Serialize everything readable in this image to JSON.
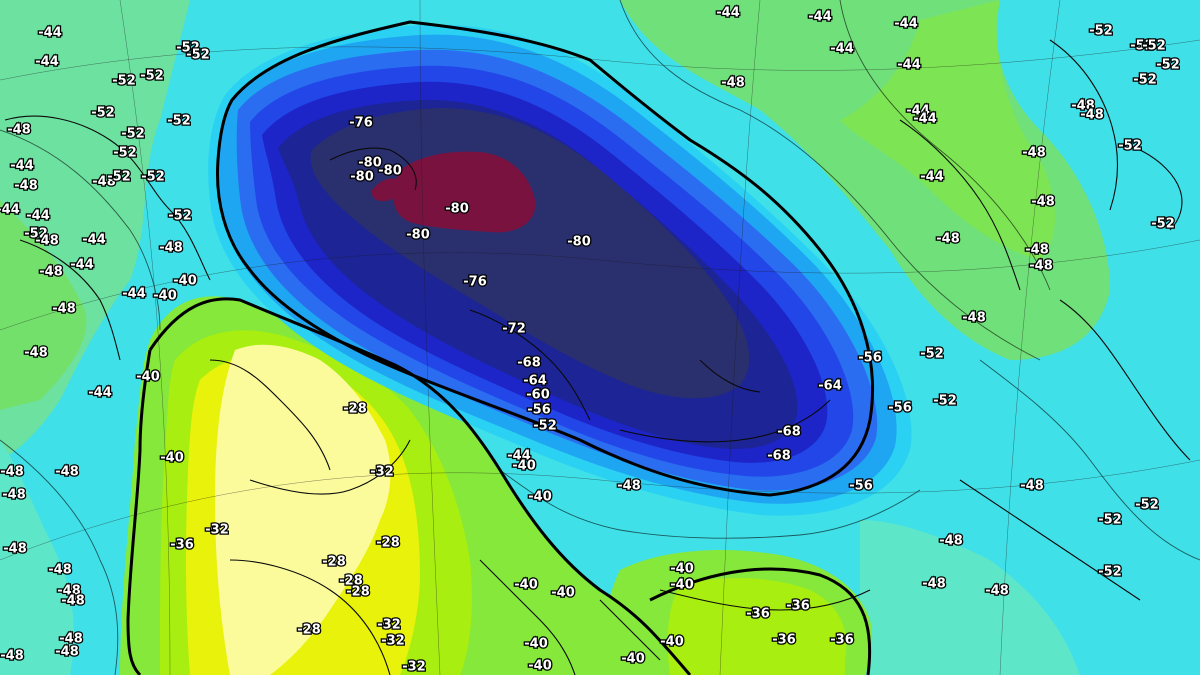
{
  "map": {
    "palette": {
      "minus80": "#7a1240",
      "minus76": "#2a2f6e",
      "minus72": "#1c2496",
      "minus68": "#1d24c8",
      "minus64": "#2246e8",
      "minus60": "#2a6df0",
      "minus56": "#1fa6f2",
      "minus52": "#2bd1f2",
      "minus48": "#5ee6c8",
      "minus44": "#70e07a",
      "minus40": "#86e83a",
      "minus36": "#a8ee10",
      "minus32": "#e8f20a",
      "minus28": "#fbfb9c"
    },
    "labels": [
      "-44",
      "-44",
      "-52",
      "-52",
      "-52",
      "-52",
      "-48",
      "-52",
      "-52",
      "-52",
      "-52",
      "-52",
      "-48",
      "-52",
      "-44",
      "-48",
      "-52",
      "-48",
      "-44",
      "-44",
      "-52",
      "-48",
      "-48",
      "-44",
      "-48",
      "-44",
      "-48",
      "-40",
      "-44",
      "-40",
      "-48",
      "-48",
      "-40",
      "-44",
      "-76",
      "-80",
      "-80",
      "-80",
      "-80",
      "-80",
      "-80",
      "-76",
      "-72",
      "-68",
      "-64",
      "-60",
      "-56",
      "-52",
      "-28",
      "-32",
      "-32",
      "-36",
      "-28",
      "-28",
      "-28",
      "-28",
      "-28",
      "-32",
      "-32",
      "-32",
      "-40",
      "-44",
      "-40",
      "-40",
      "-40",
      "-40",
      "-40",
      "-40",
      "-40",
      "-40",
      "-48",
      "-48",
      "-48",
      "-48",
      "-48",
      "-48",
      "-48",
      "-48",
      "-48",
      "-44",
      "-44",
      "-44",
      "-48",
      "-44",
      "-44",
      "-44",
      "-44",
      "-52",
      "-52",
      "-52",
      "-52",
      "-48",
      "-48",
      "-52",
      "-48",
      "-44",
      "-48",
      "-52",
      "-48",
      "-48",
      "-48",
      "-52",
      "-48",
      "-56",
      "-52",
      "-64",
      "-56",
      "-52",
      "-68",
      "-68",
      "-56",
      "-48",
      "-52",
      "-52",
      "-48",
      "-52",
      "-48",
      "-48",
      "-36",
      "-36",
      "-36",
      "-36",
      "-40",
      "-40"
    ]
  }
}
